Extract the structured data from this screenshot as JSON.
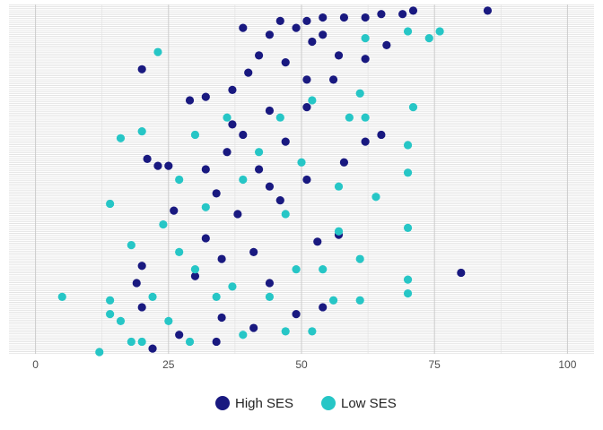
{
  "chart_data": {
    "type": "scatter",
    "xlim": [
      -5,
      105
    ],
    "xticks": [
      0,
      25,
      50,
      75,
      100
    ],
    "ylim": [
      0,
      100
    ],
    "grid": true,
    "legend": "bottom",
    "series": [
      {
        "name": "High SES",
        "color": "#191980",
        "x": [
          85,
          71,
          69,
          65,
          62,
          58,
          54,
          51,
          46,
          39,
          20,
          66,
          57,
          44,
          52,
          47,
          40,
          62,
          56,
          37,
          32,
          29,
          51,
          44,
          37,
          65,
          62,
          58,
          21,
          23,
          25,
          36,
          47,
          42,
          51,
          34,
          46,
          38,
          57,
          32,
          41,
          20,
          35,
          30,
          19,
          80,
          44,
          20,
          35,
          41,
          27,
          22,
          34,
          49,
          54,
          49,
          54,
          42,
          51,
          39,
          44,
          32,
          26,
          53
        ],
        "values": [
          99,
          99,
          98,
          98,
          97,
          97,
          97,
          96,
          96,
          94,
          82,
          89,
          86,
          92,
          90,
          84,
          81,
          85,
          79,
          76,
          74,
          73,
          71,
          70,
          66,
          63,
          61,
          55,
          56,
          54,
          54,
          58,
          61,
          53,
          50,
          46,
          44,
          40,
          34,
          33,
          29,
          25,
          27,
          22,
          20,
          23,
          20,
          13,
          10,
          7,
          5,
          1,
          3,
          11,
          13,
          94,
          92,
          86,
          79,
          63,
          48,
          53,
          41,
          32
        ]
      },
      {
        "name": "Low SES",
        "color": "#26c6c6",
        "x": [
          76,
          74,
          70,
          23,
          62,
          61,
          62,
          16,
          20,
          70,
          70,
          71,
          64,
          14,
          70,
          18,
          61,
          70,
          70,
          5,
          14,
          14,
          16,
          12,
          18,
          57,
          54,
          49,
          44,
          37,
          30,
          27,
          24,
          32,
          39,
          47,
          42,
          50,
          57,
          36,
          30,
          46,
          52,
          59,
          27,
          22,
          25,
          29,
          39,
          47,
          52,
          56,
          61,
          34,
          20
        ],
        "values": [
          93,
          91,
          93,
          87,
          91,
          75,
          68,
          62,
          64,
          60,
          52,
          71,
          45,
          43,
          36,
          31,
          27,
          21,
          17,
          16,
          15,
          11,
          9,
          0,
          3,
          35,
          24,
          24,
          16,
          19,
          24,
          29,
          37,
          42,
          50,
          40,
          58,
          55,
          48,
          68,
          63,
          68,
          73,
          68,
          50,
          16,
          9,
          3,
          5,
          6,
          6,
          15,
          15,
          16,
          3
        ]
      }
    ]
  }
}
